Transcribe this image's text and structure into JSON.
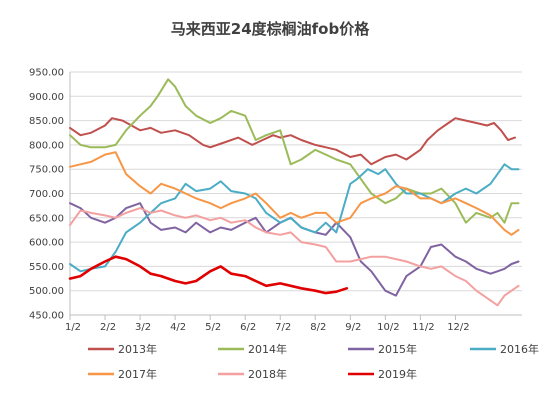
{
  "chart_data": {
    "type": "line",
    "title": "马来西亚24度棕榈油fob价格",
    "xlabel": "",
    "ylabel": "",
    "x_ticks": [
      "1/2",
      "2/2",
      "3/2",
      "4/2",
      "5/2",
      "6/2",
      "7/2",
      "8/2",
      "9/2",
      "10/2",
      "11/2",
      "12/2"
    ],
    "y_ticks": [
      "450.00",
      "500.00",
      "550.00",
      "600.00",
      "650.00",
      "700.00",
      "750.00",
      "800.00",
      "850.00",
      "900.00",
      "950.00"
    ],
    "ylim": [
      450,
      950
    ],
    "xlim_months": [
      0,
      12.9
    ],
    "grid": "horizontal",
    "legend_placement": "bottom",
    "series": [
      {
        "name": "2013年",
        "color": "#C0504D",
        "x": [
          0,
          0.3,
          0.6,
          1.0,
          1.2,
          1.5,
          2.0,
          2.3,
          2.6,
          3.0,
          3.4,
          3.8,
          4.0,
          4.4,
          4.8,
          5.2,
          5.5,
          5.8,
          6.0,
          6.3,
          6.6,
          7.0,
          7.3,
          7.6,
          8.0,
          8.3,
          8.6,
          9.0,
          9.3,
          9.6,
          10.0,
          10.2,
          10.5,
          10.8,
          11.0,
          11.3,
          11.6,
          11.9,
          12.1,
          12.3,
          12.5,
          12.7
        ],
        "y": [
          835,
          820,
          825,
          840,
          855,
          850,
          830,
          835,
          825,
          830,
          820,
          800,
          795,
          805,
          815,
          800,
          810,
          820,
          815,
          820,
          810,
          800,
          795,
          790,
          775,
          780,
          760,
          775,
          780,
          770,
          790,
          810,
          830,
          845,
          855,
          850,
          845,
          840,
          845,
          830,
          810,
          815
        ]
      },
      {
        "name": "2014年",
        "color": "#9BBB59",
        "x": [
          0,
          0.3,
          0.6,
          1.0,
          1.3,
          1.6,
          2.0,
          2.3,
          2.5,
          2.8,
          3.0,
          3.3,
          3.6,
          4.0,
          4.3,
          4.6,
          5.0,
          5.3,
          5.6,
          6.0,
          6.3,
          6.6,
          7.0,
          7.3,
          7.6,
          8.0,
          8.3,
          8.6,
          9.0,
          9.3,
          9.6,
          10.0,
          10.3,
          10.6,
          11.0,
          11.3,
          11.6,
          12.0,
          12.2,
          12.4,
          12.6,
          12.8
        ],
        "y": [
          820,
          800,
          795,
          795,
          800,
          830,
          860,
          880,
          900,
          935,
          920,
          880,
          860,
          845,
          855,
          870,
          860,
          810,
          820,
          830,
          760,
          770,
          790,
          780,
          770,
          760,
          730,
          700,
          680,
          690,
          710,
          700,
          700,
          710,
          680,
          640,
          660,
          650,
          660,
          640,
          680,
          680
        ]
      },
      {
        "name": "2015年",
        "color": "#8064A2",
        "x": [
          0,
          0.3,
          0.6,
          1.0,
          1.3,
          1.6,
          2.0,
          2.3,
          2.6,
          3.0,
          3.3,
          3.6,
          4.0,
          4.3,
          4.6,
          5.0,
          5.3,
          5.6,
          6.0,
          6.3,
          6.6,
          7.0,
          7.3,
          7.6,
          8.0,
          8.3,
          8.6,
          9.0,
          9.3,
          9.6,
          10.0,
          10.3,
          10.6,
          11.0,
          11.3,
          11.6,
          12.0,
          12.2,
          12.4,
          12.6,
          12.8
        ],
        "y": [
          680,
          670,
          650,
          640,
          650,
          670,
          680,
          640,
          625,
          630,
          620,
          640,
          620,
          630,
          625,
          640,
          650,
          620,
          640,
          650,
          630,
          620,
          615,
          640,
          610,
          560,
          540,
          500,
          490,
          530,
          550,
          590,
          595,
          570,
          560,
          545,
          535,
          540,
          545,
          555,
          560
        ]
      },
      {
        "name": "2016年",
        "color": "#4BACC6",
        "x": [
          0,
          0.3,
          0.6,
          1.0,
          1.3,
          1.6,
          2.0,
          2.3,
          2.6,
          3.0,
          3.3,
          3.6,
          4.0,
          4.3,
          4.6,
          5.0,
          5.3,
          5.6,
          6.0,
          6.3,
          6.6,
          7.0,
          7.3,
          7.6,
          8.0,
          8.2,
          8.5,
          8.8,
          9.0,
          9.3,
          9.6,
          10.0,
          10.3,
          10.6,
          11.0,
          11.3,
          11.6,
          12.0,
          12.2,
          12.4,
          12.6,
          12.8
        ],
        "y": [
          555,
          540,
          545,
          550,
          580,
          620,
          640,
          660,
          680,
          690,
          720,
          705,
          710,
          725,
          705,
          700,
          690,
          660,
          640,
          650,
          630,
          620,
          640,
          620,
          720,
          730,
          750,
          740,
          750,
          720,
          700,
          700,
          690,
          680,
          700,
          710,
          700,
          720,
          740,
          760,
          750,
          750
        ]
      },
      {
        "name": "2017年",
        "color": "#F79646",
        "x": [
          0,
          0.3,
          0.6,
          1.0,
          1.3,
          1.6,
          2.0,
          2.3,
          2.6,
          3.0,
          3.3,
          3.6,
          4.0,
          4.3,
          4.6,
          5.0,
          5.3,
          5.6,
          6.0,
          6.3,
          6.6,
          7.0,
          7.3,
          7.6,
          8.0,
          8.3,
          8.6,
          9.0,
          9.3,
          9.6,
          10.0,
          10.3,
          10.6,
          11.0,
          11.3,
          11.6,
          12.0,
          12.2,
          12.4,
          12.6,
          12.8
        ],
        "y": [
          755,
          760,
          765,
          780,
          785,
          740,
          715,
          700,
          720,
          710,
          700,
          690,
          680,
          670,
          680,
          690,
          700,
          680,
          650,
          660,
          650,
          660,
          660,
          640,
          650,
          680,
          690,
          700,
          715,
          710,
          690,
          690,
          680,
          690,
          680,
          670,
          655,
          640,
          625,
          615,
          625
        ]
      },
      {
        "name": "2018年",
        "color": "#F4A0A0",
        "x": [
          0,
          0.3,
          0.6,
          1.0,
          1.3,
          1.6,
          2.0,
          2.3,
          2.6,
          3.0,
          3.3,
          3.6,
          4.0,
          4.3,
          4.6,
          5.0,
          5.3,
          5.6,
          6.0,
          6.3,
          6.6,
          7.0,
          7.3,
          7.6,
          8.0,
          8.3,
          8.6,
          9.0,
          9.3,
          9.6,
          10.0,
          10.3,
          10.6,
          11.0,
          11.3,
          11.6,
          12.0,
          12.2,
          12.4,
          12.6,
          12.8
        ],
        "y": [
          635,
          665,
          660,
          655,
          650,
          660,
          670,
          660,
          665,
          655,
          650,
          655,
          645,
          650,
          640,
          645,
          630,
          620,
          615,
          620,
          600,
          595,
          590,
          560,
          560,
          565,
          570,
          570,
          565,
          560,
          550,
          545,
          550,
          530,
          520,
          500,
          480,
          470,
          490,
          500,
          510
        ]
      },
      {
        "name": "2019年",
        "color": "#E00000",
        "x": [
          0,
          0.3,
          0.6,
          1.0,
          1.3,
          1.6,
          2.0,
          2.3,
          2.6,
          3.0,
          3.3,
          3.6,
          4.0,
          4.3,
          4.6,
          5.0,
          5.3,
          5.6,
          6.0,
          6.3,
          6.6,
          7.0,
          7.3,
          7.6,
          7.9
        ],
        "y": [
          525,
          530,
          545,
          560,
          570,
          565,
          550,
          535,
          530,
          520,
          515,
          520,
          540,
          550,
          535,
          530,
          520,
          510,
          515,
          510,
          505,
          500,
          495,
          498,
          505
        ]
      }
    ]
  }
}
